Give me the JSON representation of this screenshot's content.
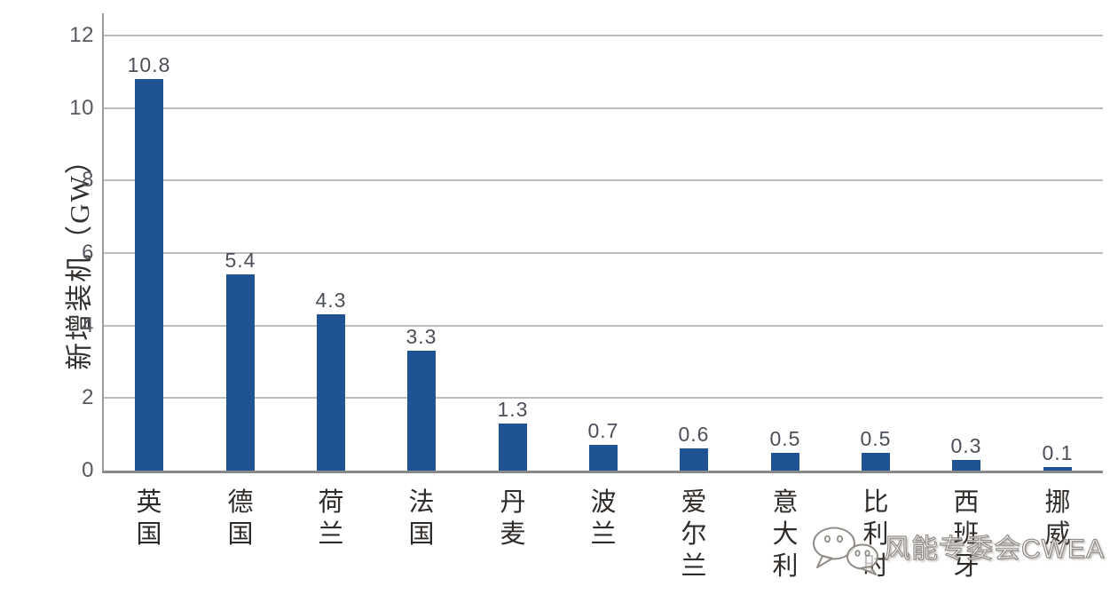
{
  "chart_data": {
    "type": "bar",
    "title": "",
    "xlabel": "",
    "ylabel": "新增装机（GW）",
    "categories": [
      "英国",
      "德国",
      "荷兰",
      "法国",
      "丹麦",
      "波兰",
      "爱尔兰",
      "意大利",
      "比利时",
      "西班牙",
      "挪威"
    ],
    "values": [
      10.8,
      5.4,
      4.3,
      3.3,
      1.3,
      0.7,
      0.6,
      0.5,
      0.5,
      0.3,
      0.1
    ],
    "value_labels": [
      "10.8",
      "5.4",
      "4.3",
      "3.3",
      "1.3",
      "0.7",
      "0.6",
      "0.5",
      "0.5",
      "0.3",
      "0.1"
    ],
    "ylim": [
      0,
      12
    ],
    "yticks": [
      0,
      2,
      4,
      6,
      8,
      10,
      12
    ],
    "grid": true,
    "legend": "none",
    "bar_color": "#1f5394",
    "gridline_color": "#bdbdbd",
    "axis_color": "#898989"
  },
  "watermark": {
    "icon": "wechat-icon",
    "text": "风能专委会CWEA"
  }
}
